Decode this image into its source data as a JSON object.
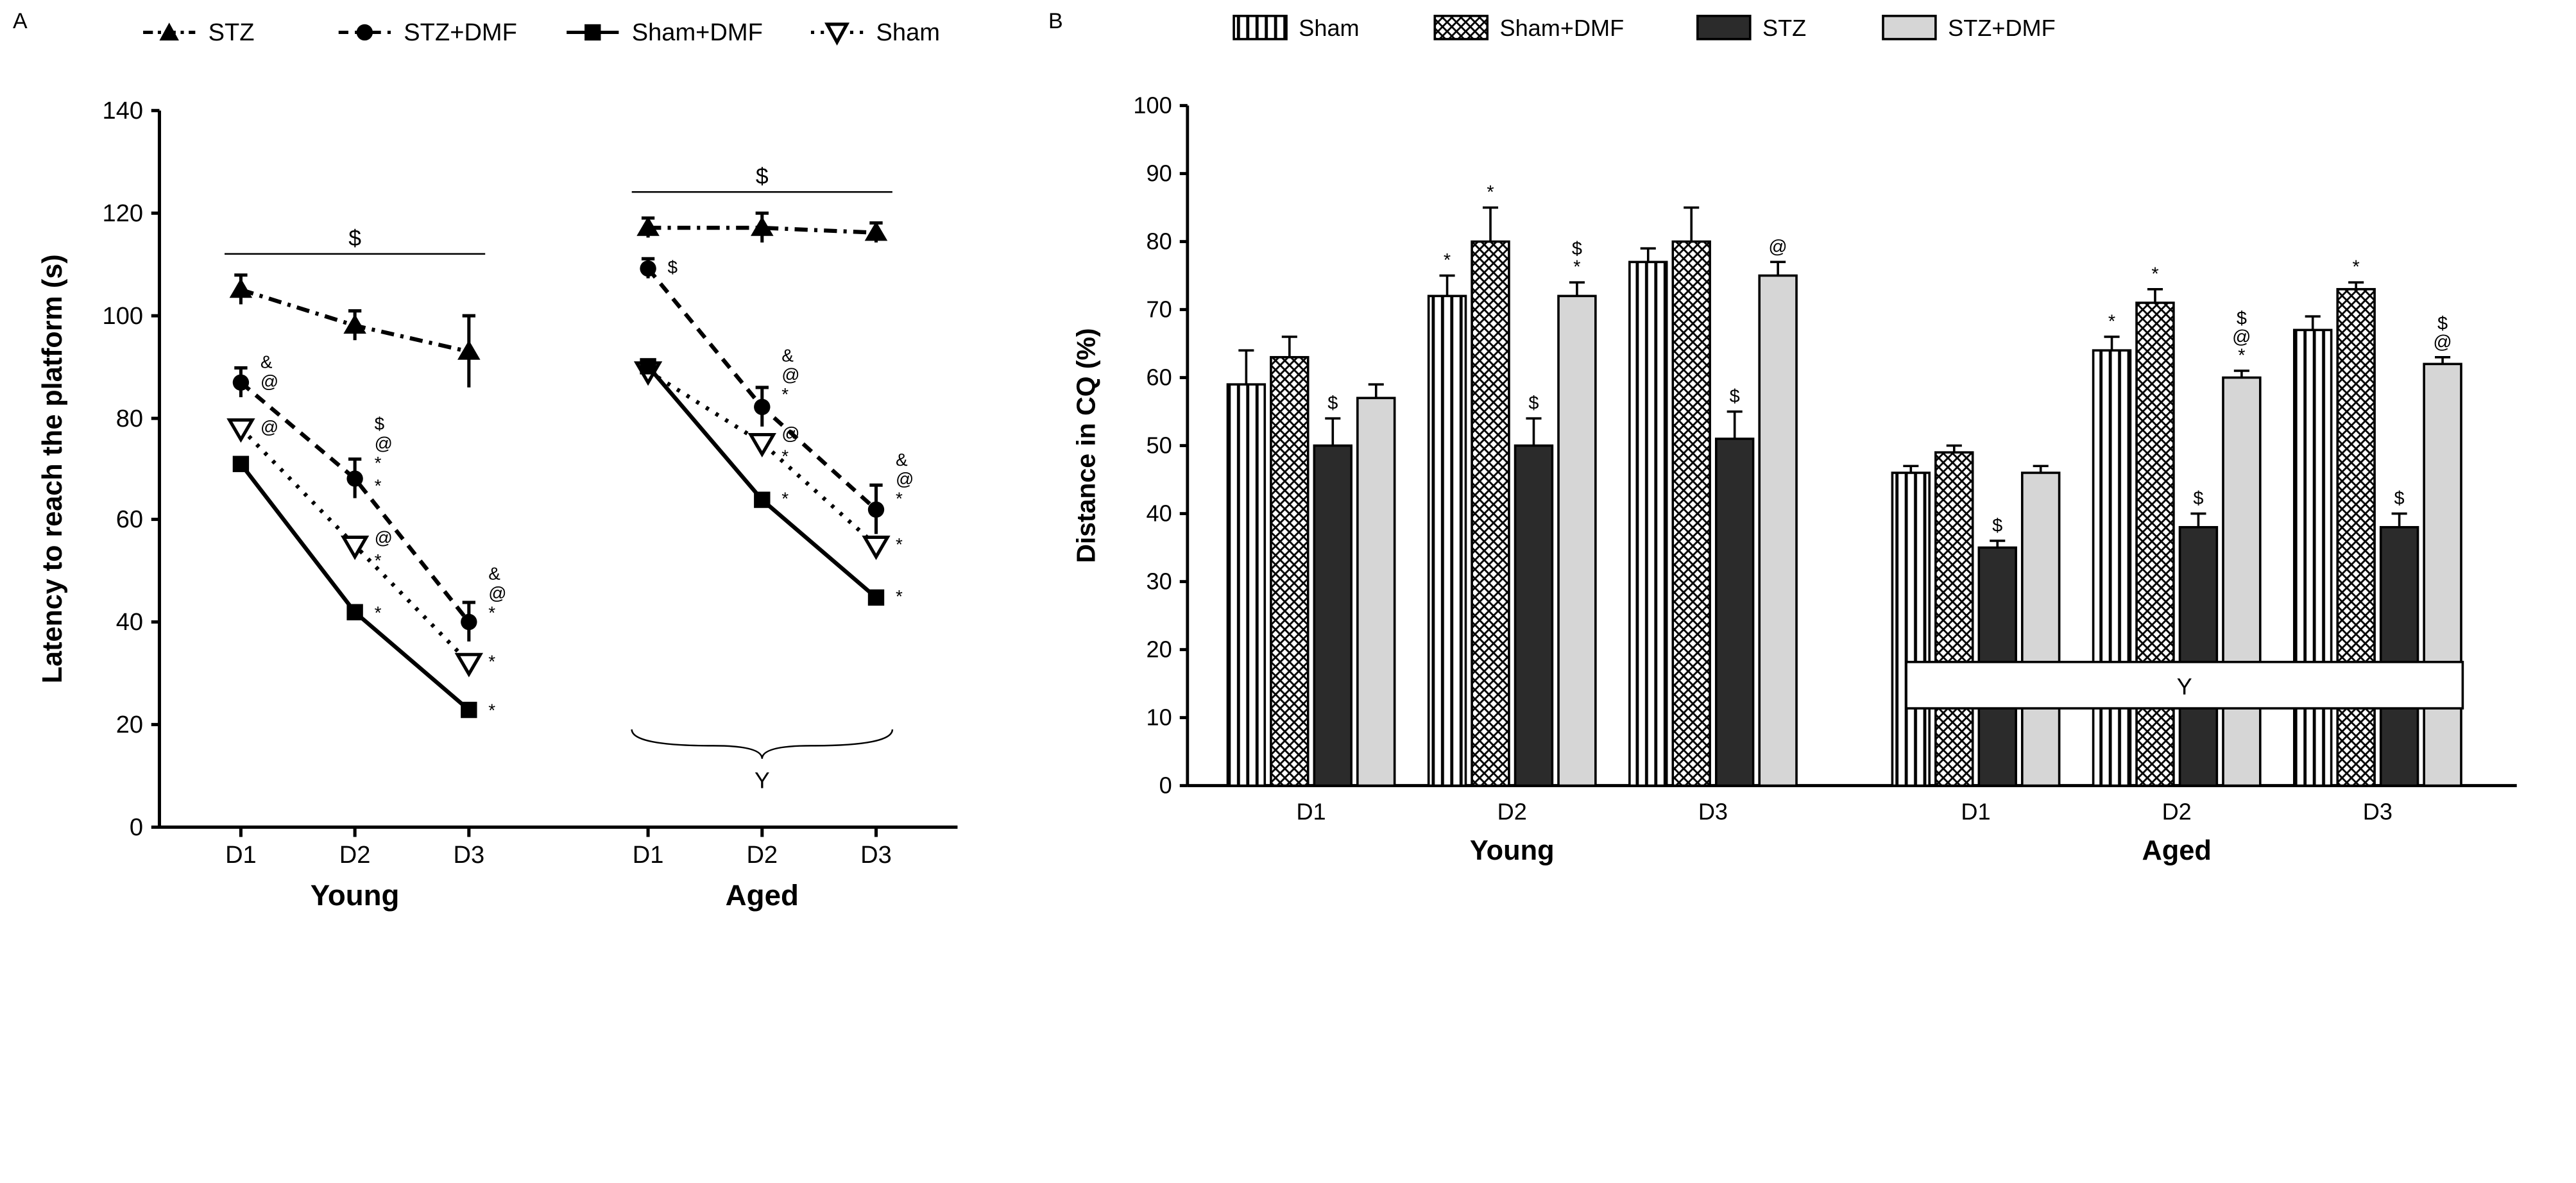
{
  "panelA": {
    "type": "line",
    "label": "A",
    "ylabel": "Latency to reach the platform (s)",
    "ylim": [
      0,
      140
    ],
    "ytick_step": 20,
    "groups": [
      "Young",
      "Aged"
    ],
    "x_categories": [
      "D1",
      "D2",
      "D3"
    ],
    "series": [
      {
        "name": "STZ",
        "marker": "triangle-filled",
        "dash": "dashdot",
        "young": [
          105,
          98,
          93
        ],
        "aged": [
          117,
          117,
          116
        ],
        "young_err": [
          3,
          3,
          7
        ],
        "aged_err": [
          2,
          3,
          2
        ]
      },
      {
        "name": "STZ+DMF",
        "marker": "circle-filled",
        "dash": "dash",
        "young": [
          87,
          68,
          40
        ],
        "aged": [
          109,
          82,
          62
        ],
        "young_err": [
          3,
          4,
          4
        ],
        "aged_err": [
          2,
          4,
          5
        ]
      },
      {
        "name": "Sham+DMF",
        "marker": "square-filled",
        "dash": "solid",
        "young": [
          71,
          42,
          23
        ],
        "aged": [
          90,
          64,
          45
        ],
        "young_err": [
          3,
          3,
          2
        ],
        "aged_err": [
          2,
          3,
          2
        ]
      },
      {
        "name": "Sham",
        "marker": "triangle-open",
        "dash": "dot",
        "young": [
          78,
          55,
          32
        ],
        "aged": [
          89,
          75,
          55
        ],
        "young_err": [
          4,
          3,
          3
        ],
        "aged_err": [
          3,
          3,
          3
        ]
      }
    ],
    "legend_order": [
      "STZ",
      "STZ+DMF",
      "Sham+DMF",
      "Sham"
    ],
    "annotations": {
      "young_dollar_line": {
        "y": 112,
        "label": "$"
      },
      "aged_dollar_line": {
        "y": 124,
        "label": "$"
      },
      "aged_brace_label": "Y",
      "point_symbols": {
        "young": {
          "D1": {
            "STZ+DMF": "& @",
            "Sham": "@"
          },
          "D2": {
            "STZ+DMF": "$ @ * *",
            "Sham": "@ *",
            "Sham+DMF": "*"
          },
          "D3": {
            "STZ+DMF": "& @ *",
            "Sham": "*",
            "Sham+DMF": "*"
          }
        },
        "aged": {
          "D1": {
            "STZ+DMF": "$"
          },
          "D2": {
            "STZ+DMF": "& @ *",
            "Sham": "@ *",
            "Sham+DMF": "*"
          },
          "D3": {
            "STZ+DMF": "& @ *",
            "Sham": "*",
            "Sham+DMF": "*"
          }
        }
      }
    },
    "colors": {
      "line": "#000000",
      "background": "#ffffff"
    },
    "line_width": 2.5,
    "marker_size": 9,
    "label_fontsize": 18,
    "tick_fontsize": 16,
    "group_label_fontsize": 20
  },
  "panelB": {
    "type": "bar",
    "label": "B",
    "ylabel": "Distance in CQ (%)",
    "ylim": [
      0,
      100
    ],
    "ytick_step": 10,
    "groups": [
      "Young",
      "Aged"
    ],
    "x_categories": [
      "D1",
      "D2",
      "D3"
    ],
    "series": [
      {
        "name": "Sham",
        "fill": "pattern-vert",
        "young": [
          59,
          72,
          77
        ],
        "aged": [
          46,
          64,
          67
        ],
        "young_err": [
          5,
          3,
          2
        ],
        "aged_err": [
          1,
          2,
          2
        ]
      },
      {
        "name": "Sham+DMF",
        "fill": "pattern-check",
        "young": [
          63,
          80,
          80
        ],
        "aged": [
          49,
          71,
          73
        ],
        "young_err": [
          3,
          5,
          5
        ],
        "aged_err": [
          1,
          2,
          1
        ]
      },
      {
        "name": "STZ",
        "fill": "#2b2b2b",
        "young": [
          50,
          50,
          51
        ],
        "aged": [
          35,
          38,
          38
        ],
        "young_err": [
          4,
          4,
          4
        ],
        "aged_err": [
          1,
          2,
          2
        ]
      },
      {
        "name": "STZ+DMF",
        "fill": "#d6d6d6",
        "young": [
          57,
          72,
          75
        ],
        "aged": [
          46,
          60,
          62
        ],
        "young_err": [
          2,
          2,
          2
        ],
        "aged_err": [
          1,
          1,
          1
        ]
      }
    ],
    "legend_order": [
      "Sham",
      "Sham+DMF",
      "STZ",
      "STZ+DMF"
    ],
    "annotations": {
      "aged_Y_box": {
        "y_center": 15,
        "label": "Y"
      },
      "bar_symbols": {
        "young": {
          "D1": {
            "STZ": "$"
          },
          "D2": {
            "Sham": "*",
            "Sham+DMF": "*",
            "STZ": "$",
            "STZ+DMF": "$ *"
          },
          "D3": {
            "STZ": "$",
            "STZ+DMF": "@"
          }
        },
        "aged": {
          "D1": {
            "STZ": "$"
          },
          "D2": {
            "Sham": "*",
            "Sham+DMF": "*",
            "STZ": "$",
            "STZ+DMF": "$ @ *"
          },
          "D3": {
            "Sham+DMF": "*",
            "STZ": "$",
            "STZ+DMF": "$ @"
          }
        }
      }
    },
    "colors": {
      "outline": "#000000",
      "background": "#ffffff"
    },
    "bar_width": 0.8,
    "label_fontsize": 18,
    "tick_fontsize": 16,
    "group_label_fontsize": 20
  }
}
